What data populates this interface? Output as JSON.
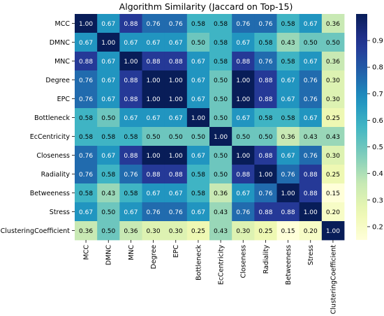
{
  "chart_data": {
    "type": "heatmap",
    "title": "Algorithm Similarity (Jaccard on Top-15)",
    "labels": [
      "MCC",
      "DMNC",
      "MNC",
      "Degree",
      "EPC",
      "Bottleneck",
      "EcCentricity",
      "Closeness",
      "Radiality",
      "Betweeness",
      "Stress",
      "ClusteringCoefficient"
    ],
    "values": [
      [
        1.0,
        0.67,
        0.88,
        0.76,
        0.76,
        0.58,
        0.58,
        0.76,
        0.76,
        0.58,
        0.67,
        0.36
      ],
      [
        0.67,
        1.0,
        0.67,
        0.67,
        0.67,
        0.5,
        0.58,
        0.67,
        0.58,
        0.43,
        0.5,
        0.5
      ],
      [
        0.88,
        0.67,
        1.0,
        0.88,
        0.88,
        0.67,
        0.58,
        0.88,
        0.76,
        0.58,
        0.67,
        0.36
      ],
      [
        0.76,
        0.67,
        0.88,
        1.0,
        1.0,
        0.67,
        0.5,
        1.0,
        0.88,
        0.67,
        0.76,
        0.3
      ],
      [
        0.76,
        0.67,
        0.88,
        1.0,
        1.0,
        0.67,
        0.5,
        1.0,
        0.88,
        0.67,
        0.76,
        0.3
      ],
      [
        0.58,
        0.5,
        0.67,
        0.67,
        0.67,
        1.0,
        0.5,
        0.67,
        0.58,
        0.58,
        0.67,
        0.25
      ],
      [
        0.58,
        0.58,
        0.58,
        0.5,
        0.5,
        0.5,
        1.0,
        0.5,
        0.5,
        0.36,
        0.43,
        0.43
      ],
      [
        0.76,
        0.67,
        0.88,
        1.0,
        1.0,
        0.67,
        0.5,
        1.0,
        0.88,
        0.67,
        0.76,
        0.3
      ],
      [
        0.76,
        0.58,
        0.76,
        0.88,
        0.88,
        0.58,
        0.5,
        0.88,
        1.0,
        0.76,
        0.88,
        0.25
      ],
      [
        0.58,
        0.43,
        0.58,
        0.67,
        0.67,
        0.58,
        0.36,
        0.67,
        0.76,
        1.0,
        0.88,
        0.15
      ],
      [
        0.67,
        0.5,
        0.67,
        0.76,
        0.76,
        0.67,
        0.43,
        0.76,
        0.88,
        0.88,
        1.0,
        0.2
      ],
      [
        0.36,
        0.5,
        0.36,
        0.3,
        0.3,
        0.25,
        0.43,
        0.3,
        0.25,
        0.15,
        0.2,
        1.0
      ]
    ],
    "value_format": "2 decimals",
    "colormap": "YlGnBu",
    "color_range": [
      0.15,
      1.0
    ],
    "colorbar": {
      "ticks": [
        0.2,
        0.3,
        0.4,
        0.5,
        0.6,
        0.7,
        0.8,
        0.9
      ],
      "placement": "right"
    },
    "grid": false
  }
}
